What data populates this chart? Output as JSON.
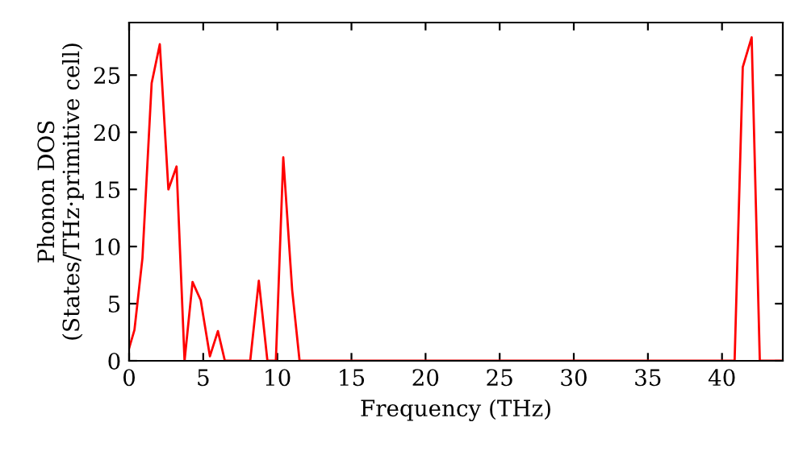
{
  "chart_data": {
    "type": "line",
    "xlabel": "Frequency (THz)",
    "ylabel": "Phonon DOS\n(States/THz·primitive cell)",
    "series": [
      {
        "color": "#ff0000",
        "x": [
          0,
          0.36,
          0.9,
          1.52,
          2.07,
          2.65,
          3.2,
          3.74,
          4.28,
          4.83,
          5.45,
          5.99,
          6.46,
          8.17,
          8.75,
          9.33,
          9.9,
          10.4,
          11.0,
          11.5,
          40.85,
          41.4,
          42.0,
          42.55,
          44.1
        ],
        "values": [
          1.1,
          2.7,
          9.0,
          24.3,
          27.7,
          15.0,
          17.0,
          0,
          6.9,
          5.3,
          0.4,
          2.6,
          0,
          0,
          7.0,
          0,
          0,
          17.8,
          6.2,
          0,
          0,
          25.7,
          28.3,
          0,
          0
        ]
      }
    ],
    "xlim": [
      0,
      44.1
    ],
    "ylim": [
      0,
      29.6
    ],
    "xticks": [
      0,
      5,
      10,
      15,
      20,
      25,
      30,
      35,
      40
    ],
    "yticks": [
      0,
      5,
      10,
      15,
      20,
      25
    ],
    "marker": "none",
    "line_style": "solid"
  }
}
